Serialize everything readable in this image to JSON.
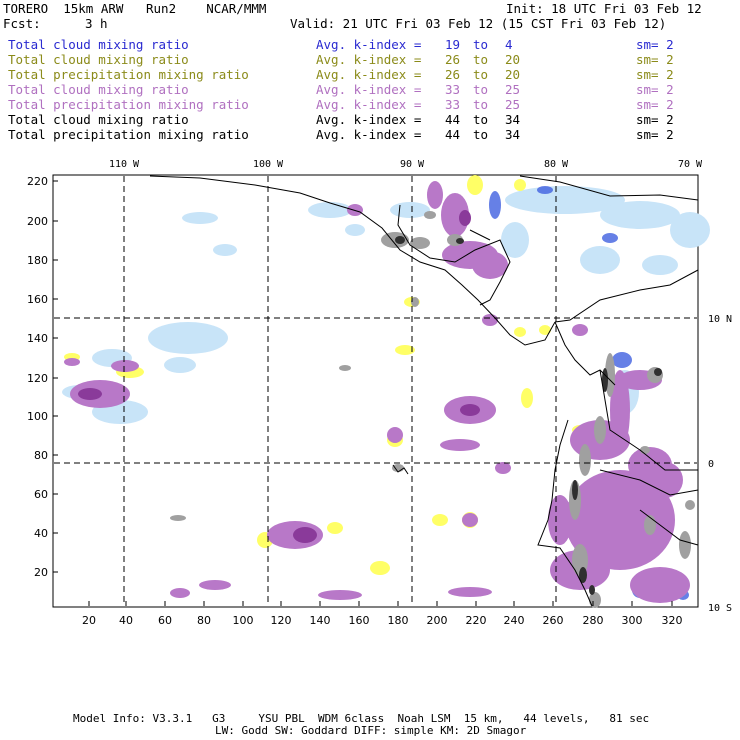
{
  "header": {
    "title_left": "TORERO  15km ARW   Run2    NCAR/MMM",
    "init": "Init: 18 UTC Fri 03 Feb 12",
    "fcst_label": "Fcst:",
    "fcst_value": "3 h",
    "valid": "Valid: 21 UTC Fri 03 Feb 12 (15 CST Fri 03 Feb 12)"
  },
  "legend": [
    {
      "label": "Total cloud mixing ratio",
      "kindex": "Avg. k-index =",
      "from": "19",
      "to_word": "to",
      "to": "4",
      "sm": "sm= 2",
      "color": "#2a2ad0"
    },
    {
      "label": "Total cloud mixing ratio",
      "kindex": "Avg. k-index =",
      "from": "26",
      "to_word": "to",
      "to": "20",
      "sm": "sm= 2",
      "color": "#8b8b1a"
    },
    {
      "label": "Total precipitation mixing ratio",
      "kindex": "Avg. k-index =",
      "from": "26",
      "to_word": "to",
      "to": "20",
      "sm": "sm= 2",
      "color": "#8b8b1a"
    },
    {
      "label": "Total cloud mixing ratio",
      "kindex": "Avg. k-index =",
      "from": "33",
      "to_word": "to",
      "to": "25",
      "sm": "sm= 2",
      "color": "#b070c0"
    },
    {
      "label": "Total precipitation mixing ratio",
      "kindex": "Avg. k-index =",
      "from": "33",
      "to_word": "to",
      "to": "25",
      "sm": "sm= 2",
      "color": "#b070c0"
    },
    {
      "label": "Total cloud mixing ratio",
      "kindex": "Avg. k-index =",
      "from": "44",
      "to_word": "to",
      "to": "34",
      "sm": "sm= 2",
      "color": "#000000"
    },
    {
      "label": "Total precipitation mixing ratio",
      "kindex": "Avg. k-index =",
      "from": "44",
      "to_word": "to",
      "to": "34",
      "sm": "sm= 2",
      "color": "#000000"
    }
  ],
  "map": {
    "lon_labels": [
      "110 W",
      "100 W",
      "90 W",
      "80 W",
      "70 W"
    ],
    "lat_labels": [
      "10 N",
      "0",
      "10 S"
    ],
    "y_ticks": [
      "220",
      "200",
      "180",
      "160",
      "140",
      "120",
      "100",
      "80",
      "60",
      "40",
      "20"
    ],
    "x_ticks": [
      "20",
      "40",
      "60",
      "80",
      "100",
      "120",
      "140",
      "160",
      "180",
      "200",
      "220",
      "240",
      "260",
      "280",
      "300",
      "320"
    ],
    "colors": {
      "blue_cloud": "#c8e4f8",
      "blue_strong": "#4060e0",
      "yellow": "#ffff66",
      "purple": "#b878c8",
      "purple_dark": "#8a3a9a",
      "gray": "#a0a0a0",
      "dark": "#303030"
    }
  },
  "footer": {
    "line1": "Model Info: V3.3.1   G3     YSU PBL  WDM 6class  Noah LSM  15 km,   44 levels,   81 sec",
    "line2": "LW: Godd SW: Goddard DIFF: simple KM: 2D Smagor"
  }
}
